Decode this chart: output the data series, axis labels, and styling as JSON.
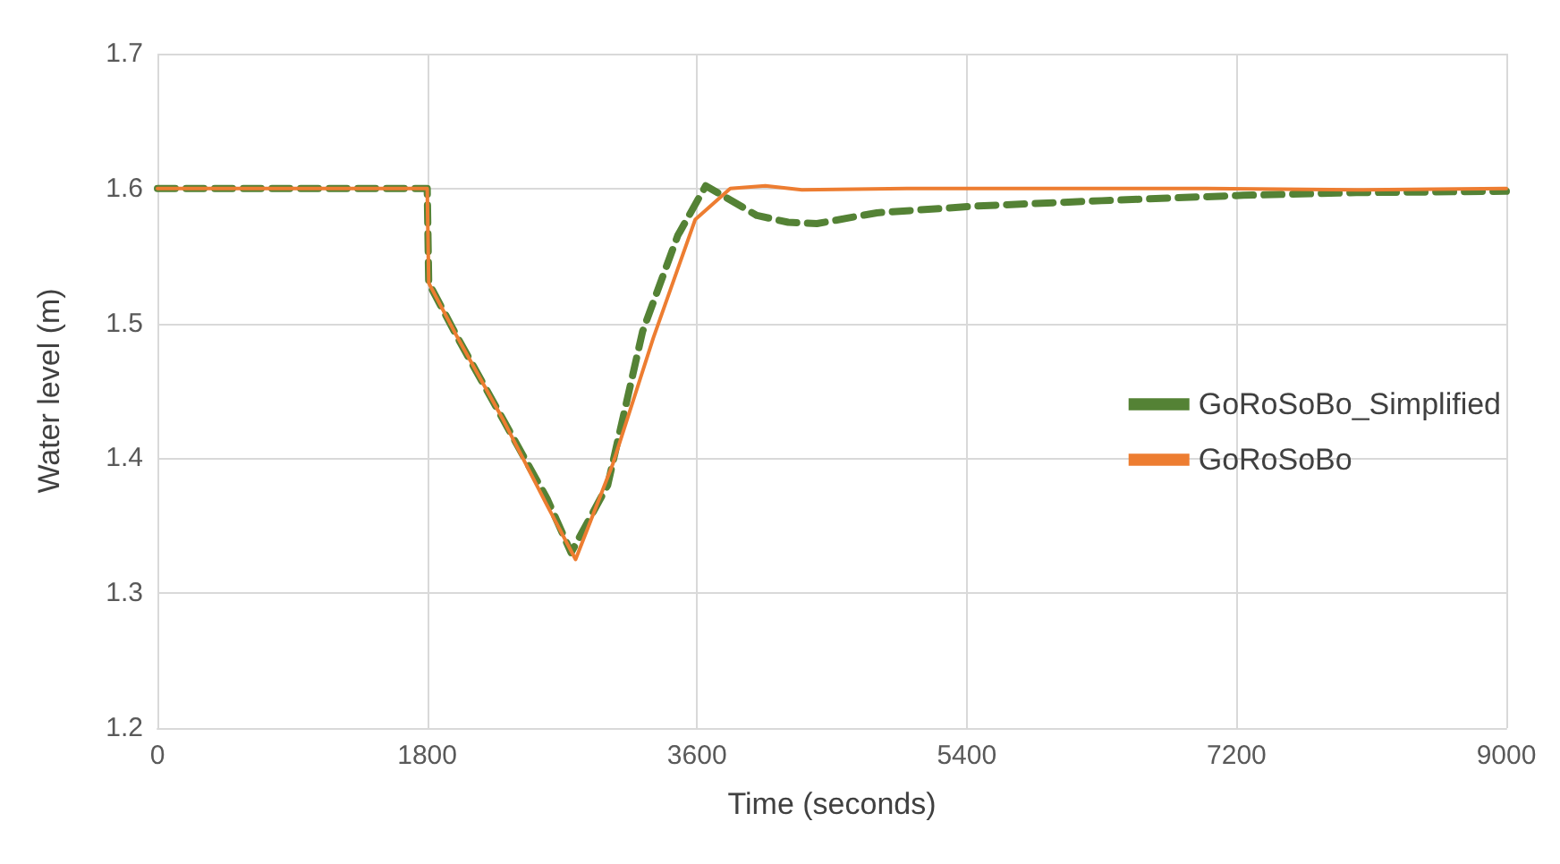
{
  "chart_data": {
    "type": "line",
    "xlabel": "Time (seconds)",
    "ylabel": "Water level (m)",
    "xlim": [
      0,
      9000
    ],
    "xticks": [
      0,
      1800,
      3600,
      5400,
      7200,
      9000
    ],
    "ylim": [
      1.2,
      1.7
    ],
    "yticks": [
      1.2,
      1.3,
      1.4,
      1.5,
      1.6,
      1.7
    ],
    "grid": true,
    "legend": "right",
    "marker": "none",
    "series": [
      {
        "name": "GoRoSoBo_Simplified",
        "color": "#548235",
        "line_style": "dashed",
        "x": [
          0,
          1800,
          1810,
          2000,
          2300,
          2600,
          2760,
          3004,
          3237,
          3471,
          3658,
          3800,
          4000,
          4208,
          4400,
          4800,
          5458,
          6300,
          7246,
          8000,
          9000
        ],
        "values": [
          1.6,
          1.6,
          1.53,
          1.49,
          1.43,
          1.37,
          1.33,
          1.38,
          1.494,
          1.565,
          1.602,
          1.593,
          1.58,
          1.575,
          1.574,
          1.582,
          1.587,
          1.591,
          1.595,
          1.597,
          1.598
        ]
      },
      {
        "name": "GoRoSoBo",
        "color": "#ed7d31",
        "line_style": "solid",
        "x": [
          0,
          1800,
          1810,
          2000,
          2300,
          2600,
          2790,
          3039,
          3308,
          3588,
          3822,
          4056,
          4300,
          5000,
          6000,
          7000,
          8000,
          9000
        ],
        "values": [
          1.6,
          1.6,
          1.53,
          1.49,
          1.43,
          1.365,
          1.325,
          1.396,
          1.489,
          1.577,
          1.6,
          1.602,
          1.599,
          1.6,
          1.6,
          1.6,
          1.599,
          1.6
        ]
      }
    ]
  }
}
